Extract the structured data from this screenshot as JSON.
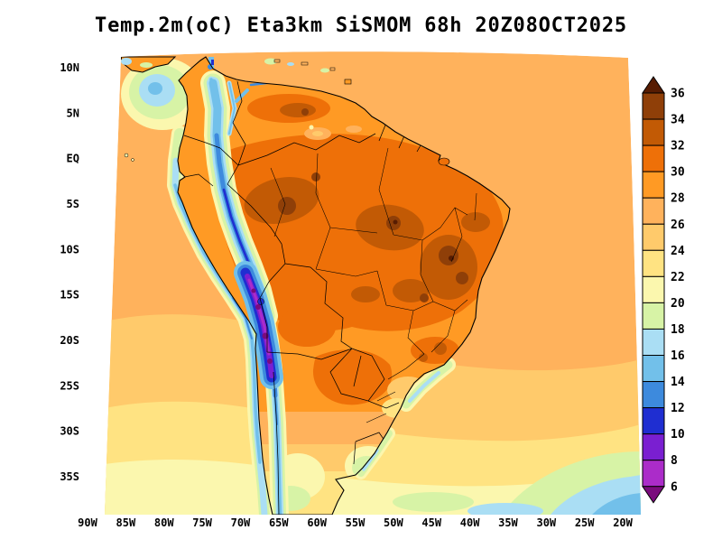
{
  "title": "Temp.2m(oC) Eta3km SiSMOM 68h 20Z08OCT2025",
  "chart_data": {
    "type": "heatmap",
    "title": "Temp.2m(oC) Eta3km SiSMOM 68h 20Z08OCT2025",
    "variable": "Temp.2m",
    "units": "oC",
    "model": "Eta3km",
    "system": "SiSMOM",
    "forecast_hour": "68h",
    "valid": "20Z08OCT2025",
    "y_ticks": [
      "10N",
      "5N",
      "EQ",
      "5S",
      "10S",
      "15S",
      "20S",
      "25S",
      "30S",
      "35S"
    ],
    "x_ticks": [
      "90W",
      "85W",
      "80W",
      "75W",
      "70W",
      "65W",
      "60W",
      "55W",
      "50W",
      "45W",
      "40W",
      "35W",
      "30W",
      "25W",
      "20W"
    ],
    "colorbar": {
      "tick_labels_top_to_bottom": [
        "36",
        "34",
        "32",
        "30",
        "28",
        "26",
        "24",
        "22",
        "20",
        "18",
        "16",
        "14",
        "12",
        "10",
        "8",
        "6"
      ],
      "levels_degC": [
        36,
        34,
        32,
        30,
        28,
        26,
        24,
        22,
        20,
        18,
        16,
        14,
        12,
        10,
        8,
        6
      ],
      "segment_keys_top_to_bottom": [
        "34_36",
        "32_34",
        "30_32",
        "28_30",
        "26_28",
        "24_26",
        "22_24",
        "20_22",
        "18_20",
        "16_18",
        "14_16",
        "12_14",
        "10_12",
        "8_10",
        "6_8"
      ],
      "above_max_key": "gt36",
      "below_min_key": "lt6"
    },
    "palette": {
      "gt36": "#571c02",
      "34_36": "#8f3f08",
      "32_34": "#c25a05",
      "30_32": "#ee7008",
      "28_30": "#ff9a24",
      "26_28": "#ffb25c",
      "24_26": "#ffca6b",
      "22_24": "#ffe382",
      "20_22": "#fbf7ae",
      "18_20": "#d7f3a6",
      "16_18": "#aadef4",
      "14_16": "#72c0ea",
      "12_14": "#3d8add",
      "10_12": "#1f2ed1",
      "8_10": "#7a1fd1",
      "6_8": "#ab2cc9",
      "lt6": "#7a0b7d"
    }
  }
}
